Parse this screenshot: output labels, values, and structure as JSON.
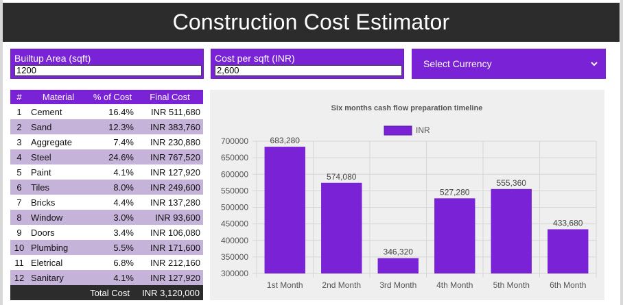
{
  "header": {
    "title": "Construction Cost Estimator"
  },
  "inputs": {
    "area": {
      "label": "Builtup Area (sqft)",
      "value": "1200"
    },
    "cost": {
      "label": "Cost per sqft (INR)",
      "value": "2,600"
    }
  },
  "currency_select": {
    "label": "Select Currency",
    "icon": "chevron-down-icon"
  },
  "materials_table": {
    "headers": [
      "#",
      "Material",
      "% of Cost",
      "Final Cost"
    ],
    "rows": [
      [
        "1",
        "Cement",
        "16.4%",
        "INR 511,680"
      ],
      [
        "2",
        "Sand",
        "12.3%",
        "INR 383,760"
      ],
      [
        "3",
        "Aggregate",
        "7.4%",
        "INR 230,880"
      ],
      [
        "4",
        "Steel",
        "24.6%",
        "INR 767,520"
      ],
      [
        "5",
        "Paint",
        "4.1%",
        "INR 127,920"
      ],
      [
        "6",
        "Tiles",
        "8.0%",
        "INR 249,600"
      ],
      [
        "7",
        "Bricks",
        "4.4%",
        "INR 137,280"
      ],
      [
        "8",
        "Window",
        "3.0%",
        "INR 93,600"
      ],
      [
        "9",
        "Doors",
        "3.4%",
        "INR 106,080"
      ],
      [
        "10",
        "Plumbing",
        "5.5%",
        "INR 171,600"
      ],
      [
        "11",
        "Eletrical",
        "6.8%",
        "INR 212,160"
      ],
      [
        "12",
        "Sanitary",
        "4.1%",
        "INR 127,920"
      ]
    ],
    "total_label": "Total Cost",
    "total_value": "INR 3,120,000"
  },
  "colors": {
    "accent": "#7a22d6",
    "band": "#c6b3d9",
    "dark": "#2c2c2c"
  },
  "chart_data": {
    "type": "bar",
    "title": "Six months cash flow preparation timeline",
    "categories": [
      "1st Month",
      "2nd Month",
      "3rd Month",
      "4th Month",
      "5th Month",
      "6th Month"
    ],
    "series": [
      {
        "name": "INR",
        "values": [
          683280,
          574080,
          346320,
          527280,
          555360,
          433680
        ]
      }
    ],
    "data_labels": [
      "683,280",
      "574,080",
      "346,320",
      "527,280",
      "555,360",
      "433,680"
    ],
    "y_ticks": [
      "300000",
      "350000",
      "400000",
      "450000",
      "500000",
      "550000",
      "600000",
      "650000",
      "700000"
    ],
    "ylim": [
      300000,
      700000
    ],
    "grid": true,
    "legend": "top-center",
    "bar_color": "#7a22d6"
  }
}
